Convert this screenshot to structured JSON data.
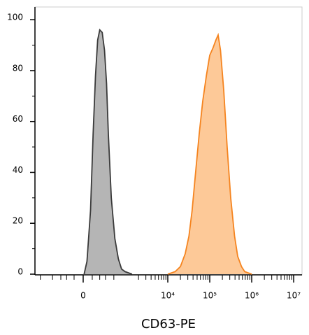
{
  "chart_data": {
    "type": "area",
    "x_label": "CD63-PE",
    "xscale": "biexponential",
    "xlim": [
      -1350,
      15800000
    ],
    "ylim": [
      0,
      105
    ],
    "xticks": [
      0,
      {
        "value": 10000,
        "label": "10⁴"
      },
      {
        "value": 100000,
        "label": "10⁵"
      },
      {
        "value": 1000000,
        "label": "10⁶"
      },
      {
        "value": 10000000,
        "label": "10⁷"
      }
    ],
    "yticks": [
      0,
      20,
      40,
      60,
      80,
      100
    ],
    "series": [
      {
        "color": "#b5b5b5",
        "line_color": "#3a3a3a",
        "x": [
          10,
          40,
          80,
          110,
          140,
          170,
          200,
          240,
          280,
          320,
          360,
          430,
          530,
          650,
          780,
          950,
          1400
        ],
        "values": [
          0,
          5,
          25,
          55,
          78,
          92,
          96,
          95,
          88,
          75,
          55,
          30,
          14,
          6,
          2,
          1,
          0
        ]
      },
      {
        "color": "#fdc998",
        "line_color": "#f5841f",
        "x": [
          10000,
          15000,
          20000,
          26000,
          32000,
          38000,
          46000,
          56000,
          68000,
          83000,
          100000,
          120000,
          140000,
          158000,
          180000,
          216000,
          260000,
          316000,
          390000,
          464000,
          570000,
          680000,
          1000000
        ],
        "values": [
          0,
          1,
          3,
          8,
          15,
          25,
          40,
          55,
          68,
          78,
          86,
          89,
          92,
          94,
          88,
          72,
          50,
          30,
          15,
          7,
          3,
          1,
          0
        ]
      }
    ]
  }
}
